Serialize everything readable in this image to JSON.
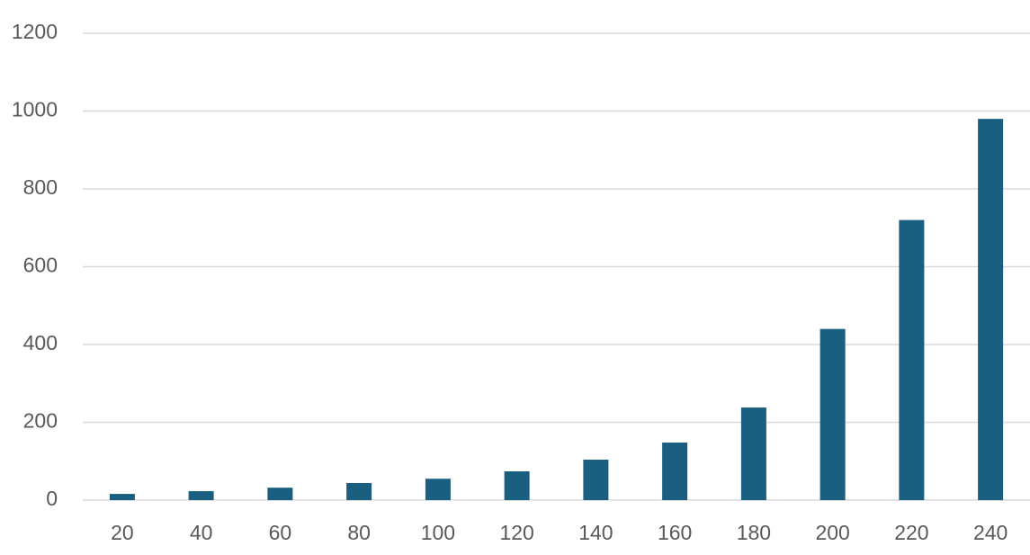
{
  "chart_data": {
    "type": "bar",
    "categories": [
      "20",
      "40",
      "60",
      "80",
      "100",
      "120",
      "140",
      "160",
      "180",
      "200",
      "220",
      "240"
    ],
    "values": [
      16,
      23,
      32,
      44,
      55,
      74,
      104,
      148,
      238,
      440,
      720,
      980
    ],
    "color": "#1a5f80",
    "ylim": [
      0,
      1200
    ],
    "yticks": [
      0,
      200,
      400,
      600,
      800,
      1000,
      1200
    ],
    "grid": true
  }
}
